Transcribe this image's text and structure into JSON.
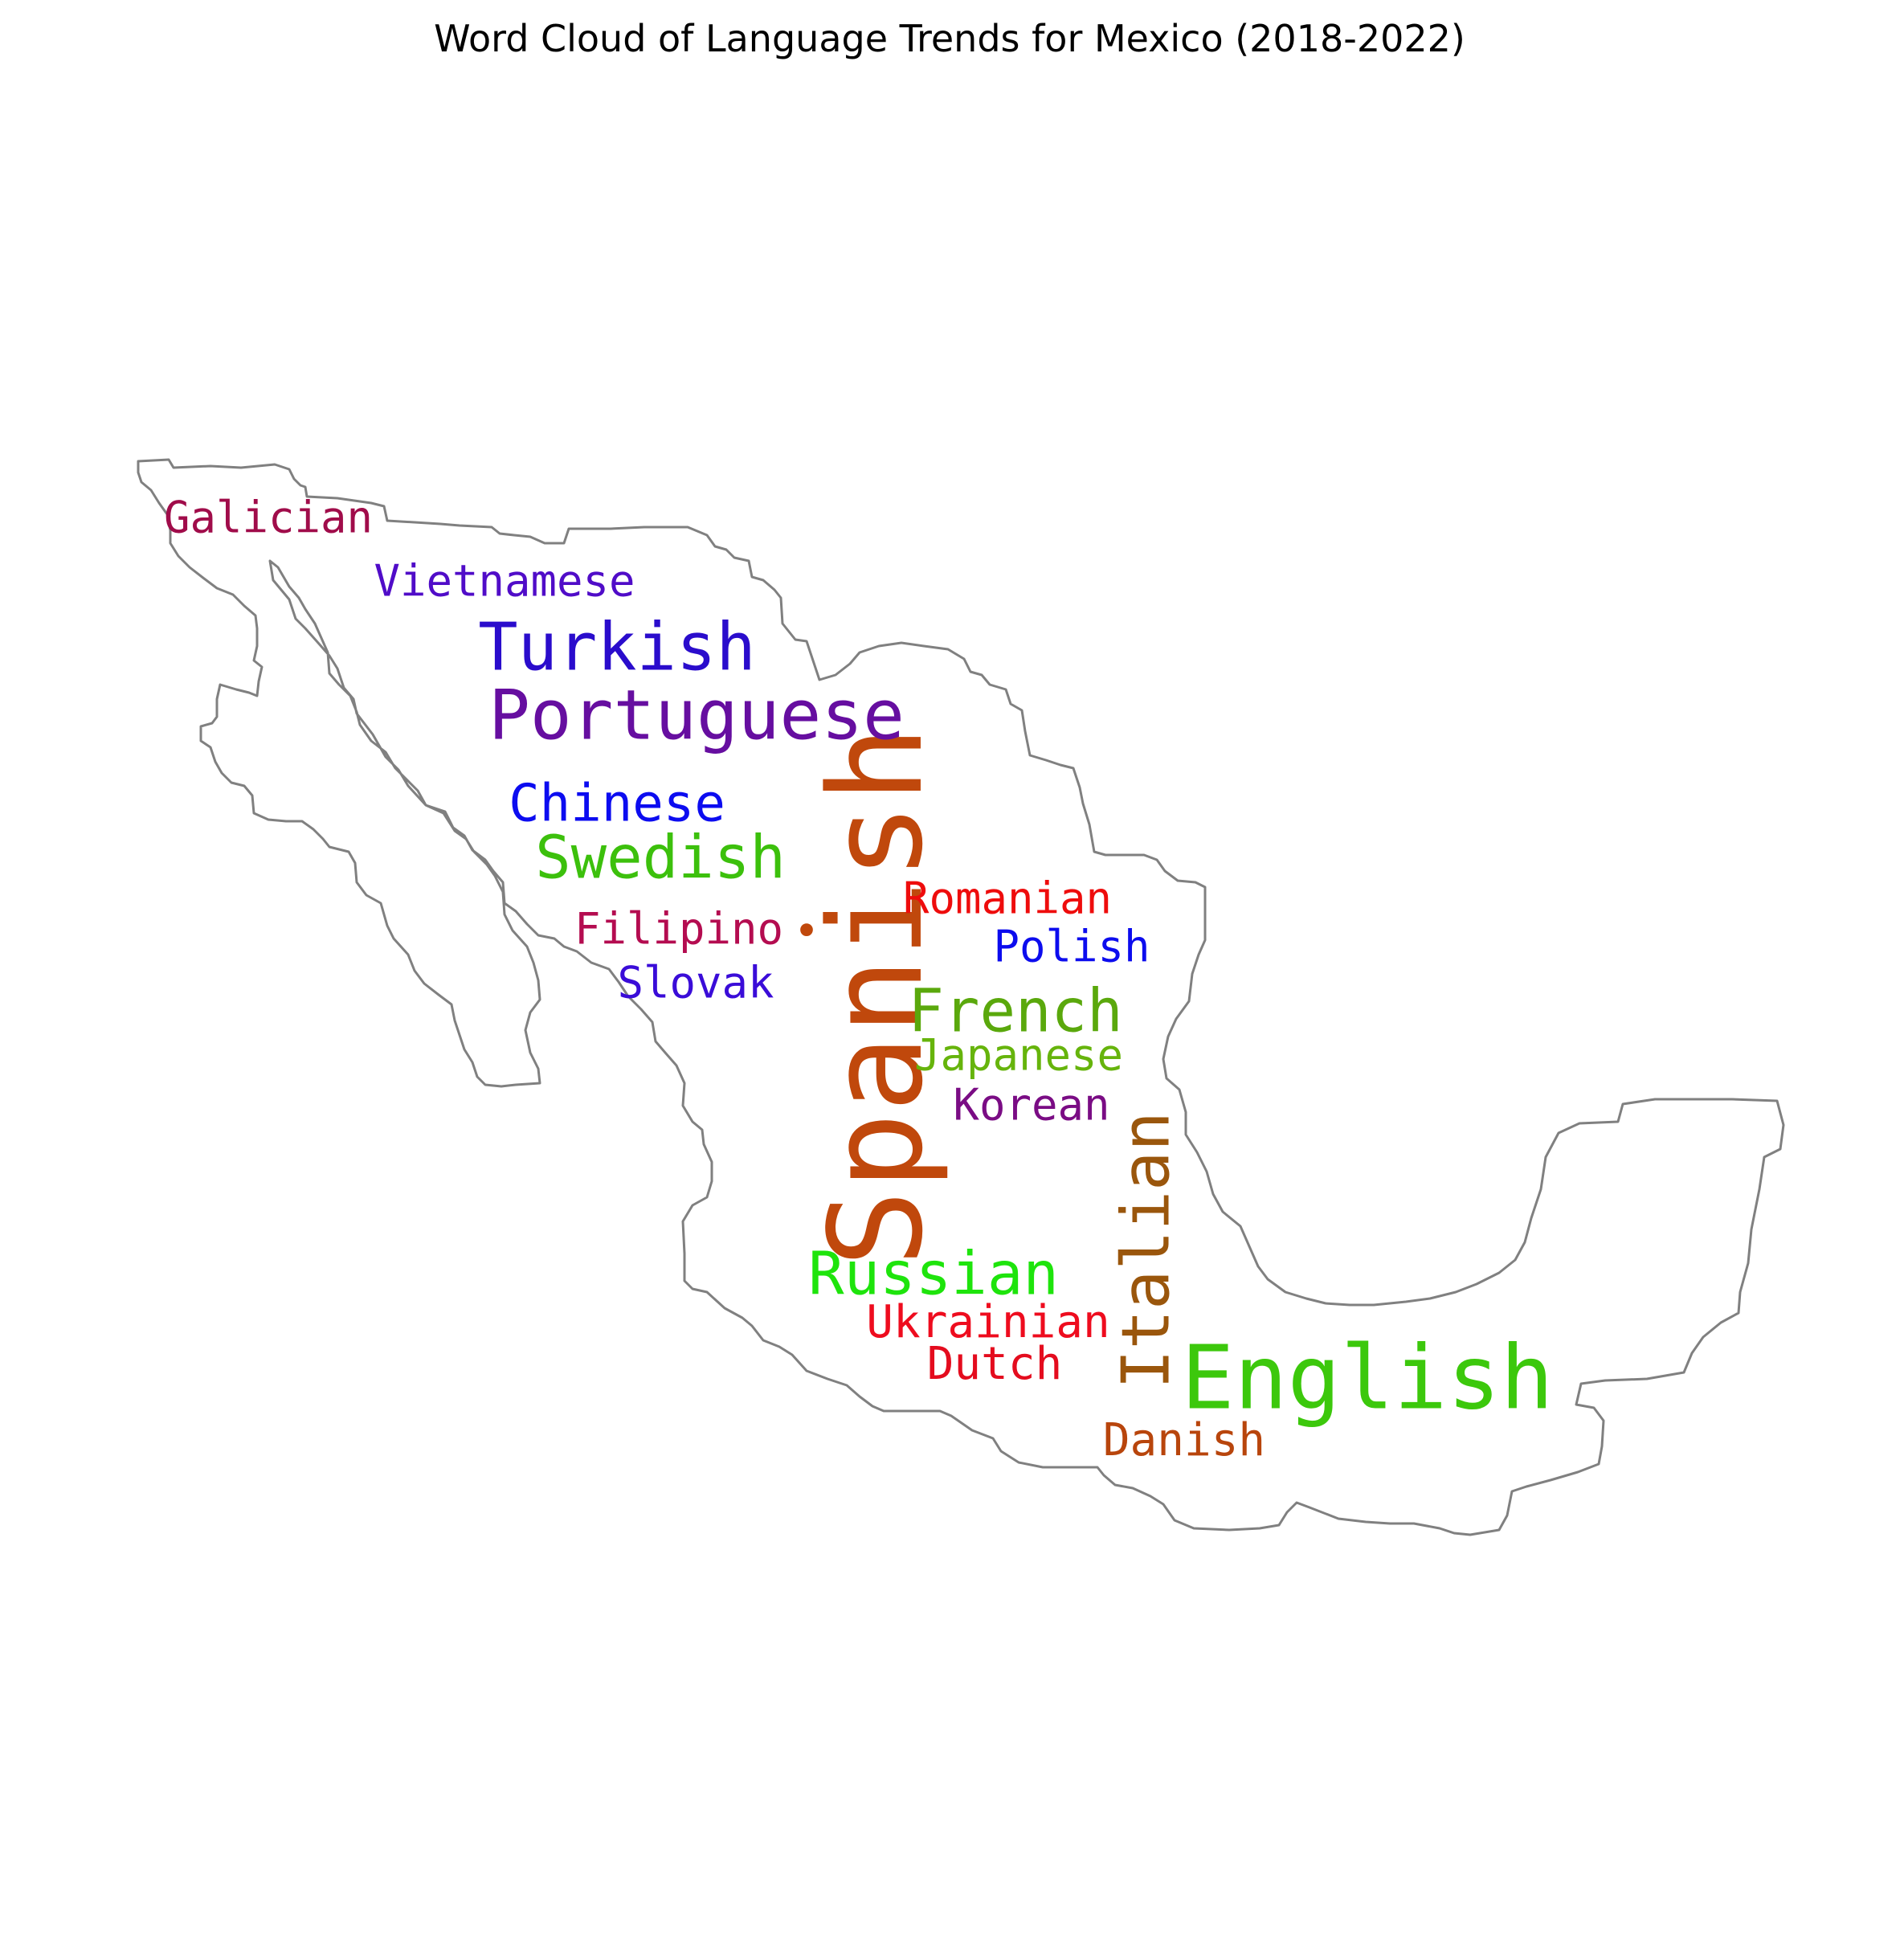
{
  "chart_data": {
    "type": "wordcloud",
    "title": "Word Cloud of Language Trends for Mexico (2018-2022)",
    "mask_shape": "Mexico outline",
    "words": [
      {
        "text": "Spanish",
        "color": "#c0480c",
        "orientation": "vertical"
      },
      {
        "text": "English",
        "color": "#3cc80c",
        "orientation": "horizontal"
      },
      {
        "text": "Portuguese",
        "color": "#660ea0",
        "orientation": "horizontal"
      },
      {
        "text": "Italian",
        "color": "#9a560c",
        "orientation": "vertical"
      },
      {
        "text": "Turkish",
        "color": "#2a0ccc",
        "orientation": "horizontal"
      },
      {
        "text": "Russian",
        "color": "#1ee40c",
        "orientation": "horizontal"
      },
      {
        "text": "Swedish",
        "color": "#3cc00c",
        "orientation": "horizontal"
      },
      {
        "text": "French",
        "color": "#5aa80c",
        "orientation": "horizontal"
      },
      {
        "text": "Chinese",
        "color": "#0c0cf0",
        "orientation": "horizontal"
      },
      {
        "text": "Ukrainian",
        "color": "#ee0c1e",
        "orientation": "horizontal"
      },
      {
        "text": "Dutch",
        "color": "#e40c1e",
        "orientation": "horizontal"
      },
      {
        "text": "Danish",
        "color": "#b8450c",
        "orientation": "horizontal"
      },
      {
        "text": "Romanian",
        "color": "#ee0c0c",
        "orientation": "horizontal"
      },
      {
        "text": "Polish",
        "color": "#0c0cee",
        "orientation": "horizontal"
      },
      {
        "text": "Japanese",
        "color": "#66b40c",
        "orientation": "horizontal"
      },
      {
        "text": "Korean",
        "color": "#7a0c84",
        "orientation": "horizontal"
      },
      {
        "text": "Filipino",
        "color": "#b40c50",
        "orientation": "horizontal"
      },
      {
        "text": "Slovak",
        "color": "#3a0cd8",
        "orientation": "horizontal"
      },
      {
        "text": "Vietnamese",
        "color": "#500cc8",
        "orientation": "horizontal"
      },
      {
        "text": "Galician",
        "color": "#a00c4a",
        "orientation": "horizontal"
      },
      {
        "text": "•",
        "color": "#c0480c",
        "orientation": "horizontal"
      }
    ]
  }
}
